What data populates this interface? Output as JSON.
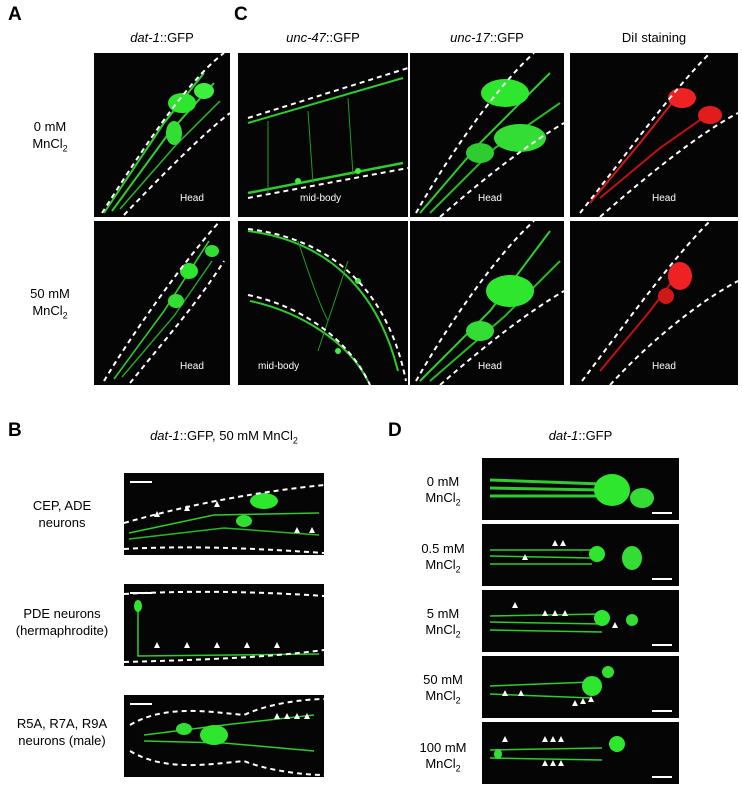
{
  "panels": {
    "A": {
      "label": "A",
      "title_gene": "dat-1",
      "title_rest": "::GFP"
    },
    "B": {
      "label": "B",
      "title_gene": "dat-1",
      "title_rest": "::GFP, 50 mM MnCl",
      "title_sub": "2",
      "rows": [
        {
          "line1": "CEP, ADE",
          "line2": "neurons"
        },
        {
          "line1": "PDE neurons",
          "line2": "(hermaphrodite)"
        },
        {
          "line1": "R5A, R7A, R9A",
          "line2": "neurons (male)"
        }
      ]
    },
    "C": {
      "label": "C",
      "columns": [
        {
          "gene": "unc-47",
          "rest": "::GFP"
        },
        {
          "gene": "unc-17",
          "rest": "::GFP"
        },
        {
          "gene": "",
          "rest": "DiI staining"
        }
      ]
    },
    "D": {
      "label": "D",
      "title_gene": "dat-1",
      "title_rest": "::GFP",
      "rows": [
        {
          "conc": "0 mM",
          "salt": "MnCl",
          "sub": "2"
        },
        {
          "conc": "0.5 mM",
          "salt": "MnCl",
          "sub": "2"
        },
        {
          "conc": "5 mM",
          "salt": "MnCl",
          "sub": "2"
        },
        {
          "conc": "50 mM",
          "salt": "MnCl",
          "sub": "2"
        },
        {
          "conc": "100 mM",
          "salt": "MnCl",
          "sub": "2"
        }
      ]
    }
  },
  "conditions": [
    {
      "conc": "0 mM",
      "salt": "MnCl",
      "sub": "2"
    },
    {
      "conc": "50 mM",
      "salt": "MnCl",
      "sub": "2"
    }
  ],
  "image_tags": {
    "head": "Head",
    "mid_body": "mid-body"
  }
}
